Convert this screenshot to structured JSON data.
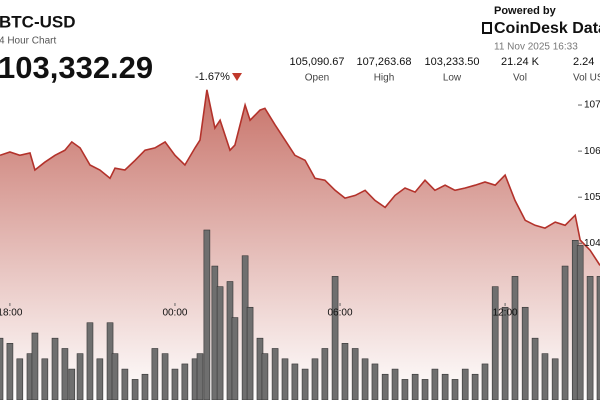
{
  "header": {
    "symbol": "BTC-USD",
    "subtitle": "4 Hour Chart",
    "price": "103,332.29",
    "change": "-1.67%",
    "stats": [
      {
        "value": "105,090.67",
        "label": "Open"
      },
      {
        "value": "107,263.68",
        "label": "High"
      },
      {
        "value": "103,233.50",
        "label": "Low"
      },
      {
        "value": "21.24 K",
        "label": "Vol"
      },
      {
        "value": "2.24",
        "label": "Vol US"
      }
    ],
    "powered_by": "Powered by",
    "brand": "CoinDesk Data",
    "timestamp": "11 Nov 2025 16:33"
  },
  "chart_data": {
    "type": "line",
    "x": [
      -0.36,
      0,
      0.36,
      0.73,
      0.91,
      1.27,
      1.64,
      2.0,
      2.25,
      2.55,
      2.91,
      3.27,
      3.64,
      3.82,
      4.18,
      4.55,
      4.91,
      5.27,
      5.64,
      6.0,
      6.36,
      6.73,
      6.91,
      7.16,
      7.45,
      7.64,
      8.0,
      8.18,
      8.55,
      8.73,
      9.09,
      9.27,
      9.64,
      10.0,
      10.36,
      10.73,
      11.09,
      11.45,
      11.82,
      12.18,
      12.55,
      12.91,
      13.27,
      13.64,
      14.0,
      14.36,
      14.73,
      15.09,
      15.45,
      15.82,
      16.18,
      16.55,
      16.91,
      17.27,
      17.64,
      18.0,
      18.36,
      18.73,
      19.09,
      19.45,
      19.82,
      20.18,
      20.55,
      20.73,
      21.09,
      21.45
    ],
    "series": [
      {
        "color": "#b3322b",
        "values": [
          105.91,
          105.98,
          105.91,
          105.96,
          105.59,
          105.76,
          105.91,
          106.02,
          106.2,
          106.07,
          105.7,
          105.59,
          105.41,
          105.63,
          105.59,
          105.8,
          106.02,
          106.07,
          106.2,
          105.91,
          105.7,
          106.07,
          106.24,
          107.33,
          106.5,
          106.67,
          106.02,
          106.13,
          107.0,
          106.67,
          106.89,
          106.93,
          106.57,
          106.24,
          105.91,
          105.8,
          105.41,
          105.37,
          105.15,
          104.98,
          105.04,
          105.15,
          104.93,
          104.78,
          105.04,
          105.2,
          105.11,
          105.37,
          105.15,
          105.26,
          105.15,
          105.2,
          105.26,
          105.33,
          105.26,
          105.48,
          104.93,
          104.5,
          104.39,
          104.33,
          104.46,
          104.39,
          104.61,
          104.07,
          103.85,
          103.52
        ]
      }
    ],
    "volume": {
      "color": "#6f6f6f",
      "values": [
        60,
        55,
        40,
        45,
        65,
        40,
        60,
        50,
        30,
        45,
        75,
        40,
        75,
        45,
        30,
        20,
        25,
        50,
        45,
        30,
        35,
        40,
        45,
        165,
        130,
        110,
        115,
        80,
        140,
        90,
        60,
        45,
        50,
        40,
        35,
        30,
        40,
        50,
        120,
        55,
        50,
        40,
        35,
        25,
        30,
        20,
        25,
        20,
        30,
        25,
        20,
        30,
        25,
        35,
        110,
        90,
        120,
        90,
        60,
        45,
        40,
        130,
        155,
        150,
        120,
        120
      ]
    },
    "xlim": [
      -0.36,
      21.45
    ],
    "xticks": [
      {
        "value": 0,
        "label": "18:00"
      },
      {
        "value": 6,
        "label": "00:00"
      },
      {
        "value": 12,
        "label": "06:00"
      },
      {
        "value": 18,
        "label": "12:00"
      }
    ],
    "ylim": [
      100.6,
      107.4
    ],
    "yticks": [
      104,
      105,
      106,
      107
    ],
    "grid": false
  }
}
